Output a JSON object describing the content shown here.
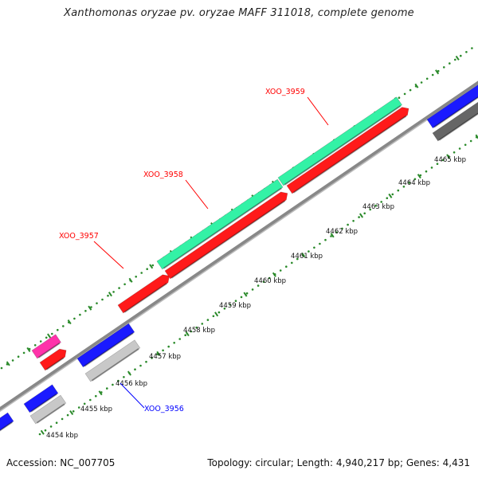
{
  "title": "Xanthomonas oryzae pv. oryzae MAFF 311018, complete genome",
  "footer": {
    "accession": "Accession: NC_007705",
    "summary": "Topology: circular; Length: 4,940,217 bp; Genes: 4,431"
  },
  "ticks": [
    "4454 kbp",
    "4455 kbp",
    "4456 kbp",
    "4457 kbp",
    "4458 kbp",
    "4459 kbp",
    "4460 kbp",
    "4461 kbp",
    "4462 kbp",
    "4463 kbp",
    "4464 kbp",
    "4465 kbp"
  ],
  "gene_labels": [
    {
      "name": "XOO_3957",
      "color": "#ff0000"
    },
    {
      "name": "XOO_3958",
      "color": "#ff0000"
    },
    {
      "name": "XOO_3959",
      "color": "#ff0000"
    },
    {
      "name": "XOO_3956",
      "color": "#0000ff"
    }
  ],
  "colors": {
    "cds_red": "#ff1a1a",
    "cds_blue": "#1a1aff",
    "rna_green": "#33f2a6",
    "pink": "#ff33aa",
    "light_gray": "#c8c8c8",
    "dark_gray": "#666666",
    "backbone": "#888888",
    "dots": "#2a8a2a"
  }
}
